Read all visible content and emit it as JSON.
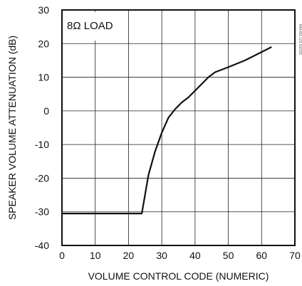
{
  "chart_data": {
    "type": "line",
    "title": "",
    "xlabel": "VOLUME CONTROL CODE (NUMERIC)",
    "ylabel": "SPEAKER VOLUME ATTENUATION (dB)",
    "xlim": [
      0,
      70
    ],
    "ylim": [
      -40,
      30
    ],
    "xticks": [
      0,
      10,
      20,
      30,
      40,
      50,
      60,
      70
    ],
    "yticks": [
      -40,
      -30,
      -20,
      -10,
      0,
      10,
      20,
      30
    ],
    "grid": true,
    "annotation": "8Ω LOAD",
    "watermark": "MAX9723 toc09",
    "series": [
      {
        "x": [
          0,
          10,
          20,
          24,
          26,
          28,
          30,
          32,
          34,
          36,
          38,
          40,
          42,
          44,
          46,
          50,
          55,
          60,
          63
        ],
        "y": [
          -30.5,
          -30.5,
          -30.5,
          -30.5,
          -19,
          -12,
          -6.5,
          -2,
          0.5,
          2.5,
          4,
          6,
          8,
          10,
          11.5,
          13,
          15,
          17.5,
          19
        ]
      }
    ]
  }
}
